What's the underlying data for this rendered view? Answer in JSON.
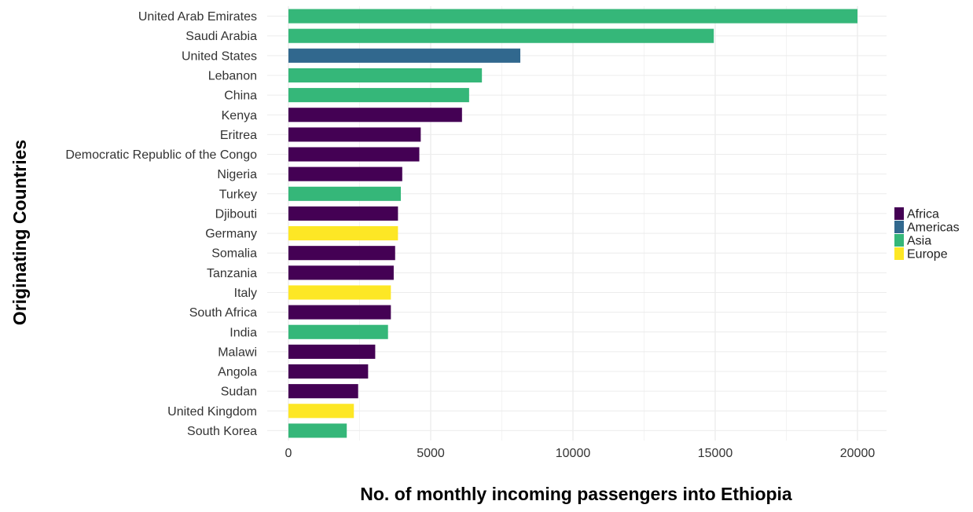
{
  "chart_data": {
    "type": "bar",
    "orientation": "horizontal",
    "xlabel": "No. of monthly incoming passengers into Ethiopia",
    "ylabel": "Originating Countries",
    "xlim": [
      0,
      21000
    ],
    "x_ticks": [
      0,
      5000,
      10000,
      15000,
      20000
    ],
    "grid": true,
    "legend_position": "right",
    "legend": [
      {
        "name": "Africa",
        "color": "#440154"
      },
      {
        "name": "Americas",
        "color": "#31688E"
      },
      {
        "name": "Asia",
        "color": "#35B779"
      },
      {
        "name": "Europe",
        "color": "#FDE725"
      }
    ],
    "categories": [
      "United Arab Emirates",
      "Saudi Arabia",
      "United States",
      "Lebanon",
      "China",
      "Kenya",
      "Eritrea",
      "Democratic Republic of the Congo",
      "Nigeria",
      "Turkey",
      "Djibouti",
      "Germany",
      "Somalia",
      "Tanzania",
      "Italy",
      "South Africa",
      "India",
      "Malawi",
      "Angola",
      "Sudan",
      "United Kingdom",
      "South Korea"
    ],
    "values": [
      20000,
      14950,
      8150,
      6800,
      6350,
      6100,
      4650,
      4600,
      4000,
      3950,
      3850,
      3850,
      3750,
      3700,
      3600,
      3600,
      3500,
      3050,
      2800,
      2450,
      2300,
      2050
    ],
    "regions": [
      "Asia",
      "Asia",
      "Americas",
      "Asia",
      "Asia",
      "Africa",
      "Africa",
      "Africa",
      "Africa",
      "Asia",
      "Africa",
      "Europe",
      "Africa",
      "Africa",
      "Europe",
      "Africa",
      "Asia",
      "Africa",
      "Africa",
      "Africa",
      "Europe",
      "Asia"
    ]
  }
}
